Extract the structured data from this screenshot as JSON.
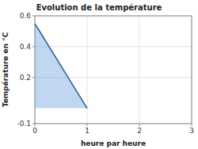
{
  "chart_data": {
    "type": "area",
    "title": "Evolution de la température",
    "xlabel": "heure par heure",
    "ylabel": "Température en °C",
    "x": [
      0,
      1
    ],
    "values": [
      0.55,
      0.0
    ],
    "bottom": [
      0.0,
      0.0
    ],
    "xlim": [
      0,
      3
    ],
    "ylim": [
      -0.1,
      0.6
    ],
    "xticks": [
      0,
      1,
      2,
      3
    ],
    "yticks": [
      -0.1,
      0.2,
      0.4,
      0.6
    ],
    "grid": true
  }
}
